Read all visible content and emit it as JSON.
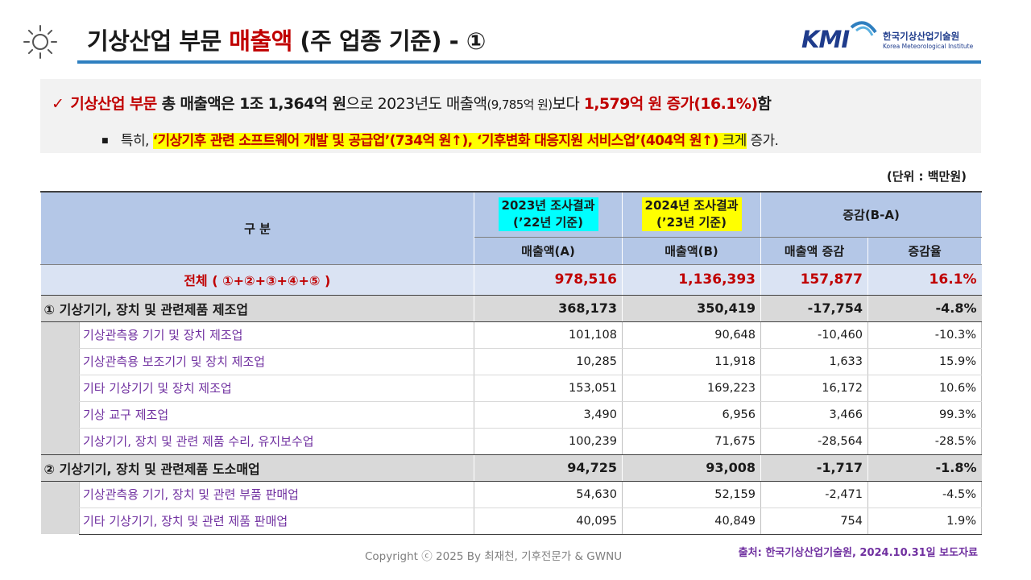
{
  "header": {
    "title_pre": "기상산업 부문 ",
    "title_red": "매출액",
    "title_post": " (주 업종 기준) - ①",
    "icon": "sun-icon"
  },
  "logo": {
    "mark": "KMI",
    "name_kr": "한국기상산업기술원",
    "name_en": "Korea Meteorological Institute"
  },
  "summary": {
    "line1": {
      "check": "✓",
      "part_red1": "기상산업 부문",
      "part_bold1": " 총 매출액은 1조 1,364억 원",
      "part_plain1": "으로 2023년도 매출액",
      "part_small": "(9,785억 원)",
      "part_plain2": "보다 ",
      "part_red2": "1,579억 원 증가(16.1%)",
      "part_bold2": "함"
    },
    "line2": {
      "bullet": "■",
      "lead": "특히, ",
      "item1": "‘기상기후 관련 소프트웨어 개발 및 공급업’(734억 원↑)",
      "sep": ", ",
      "item2": "‘기후변화 대응지원 서비스업’(404억 원↑)",
      "tail_hl": " 크게",
      "tail": " 증가."
    }
  },
  "unit": "(단위 : 백만원)",
  "table": {
    "header": {
      "category": "구 분",
      "col2023_line1": "2023년 조사결과",
      "col2023_line2": "(’22년 기준)",
      "col2024_line1": "2024년 조사결과",
      "col2024_line2": "(’23년 기준)",
      "change": "증감(B-A)",
      "sales_a": "매출액(A)",
      "sales_b": "매출액(B)",
      "sales_change": "매출액 증감",
      "rate": "증감율"
    },
    "total": {
      "label": "전체 ( ①+②+③+④+⑤ )",
      "a": "978,516",
      "b": "1,136,393",
      "diff": "157,877",
      "rate": "16.1%"
    },
    "groups": [
      {
        "label": "① 기상기기, 장치 및 관련제품 제조업",
        "a": "368,173",
        "b": "350,419",
        "diff": "-17,754",
        "rate": "-4.8%",
        "items": [
          {
            "label": "기상관측용 기기 및 장치 제조업",
            "a": "101,108",
            "b": "90,648",
            "diff": "-10,460",
            "rate": "-10.3%"
          },
          {
            "label": "기상관측용 보조기기 및 장치 제조업",
            "a": "10,285",
            "b": "11,918",
            "diff": "1,633",
            "rate": "15.9%"
          },
          {
            "label": "기타 기상기기 및 장치 제조업",
            "a": "153,051",
            "b": "169,223",
            "diff": "16,172",
            "rate": "10.6%"
          },
          {
            "label": "기상 교구 제조업",
            "a": "3,490",
            "b": "6,956",
            "diff": "3,466",
            "rate": "99.3%"
          },
          {
            "label": "기상기기, 장치 및 관련 제품 수리, 유지보수업",
            "a": "100,239",
            "b": "71,675",
            "diff": "-28,564",
            "rate": "-28.5%"
          }
        ]
      },
      {
        "label": "② 기상기기, 장치 및 관련제품 도소매업",
        "a": "94,725",
        "b": "93,008",
        "diff": "-1,717",
        "rate": "-1.8%",
        "items": [
          {
            "label": "기상관측용 기기, 장치 및 관련 부품 판매업",
            "a": "54,630",
            "b": "52,159",
            "diff": "-2,471",
            "rate": "-4.5%"
          },
          {
            "label": "기타 기상기기, 장치 및 관련 제품 판매업",
            "a": "40,095",
            "b": "40,849",
            "diff": "754",
            "rate": "1.9%"
          }
        ]
      }
    ]
  },
  "footer": {
    "copyright": "Copyright ⓒ 2025 By 최재천, 기후전문가 & GWNU",
    "source": "출처: 한국기상산업기술원, 2024.10.31일 보도자료"
  },
  "colors": {
    "accent_red": "#c00000",
    "purple": "#7030a0",
    "header_blue": "#b4c7e7",
    "rule_blue": "#2f7fc0",
    "highlight_yellow": "#ffff00",
    "highlight_cyan": "#00ffff"
  }
}
